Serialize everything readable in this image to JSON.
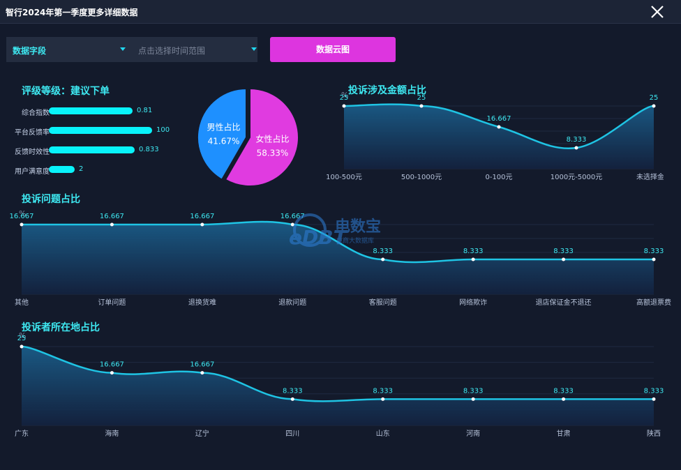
{
  "window": {
    "title": "智行2024年第一季度更多详细数据"
  },
  "filters": {
    "field_select": "数据字段",
    "time_placeholder": "点击选择时间范围",
    "cloud_button": "数据云图"
  },
  "rating": {
    "title": "评级等级：建议下单",
    "items": [
      {
        "label": "综合指数",
        "value": 0.81,
        "display": "0.81",
        "fill": 0.81
      },
      {
        "label": "平台反馈率",
        "value": 100,
        "display": "100",
        "fill": 1.0
      },
      {
        "label": "反馈时效性",
        "value": 0.833,
        "display": "0.833",
        "fill": 0.833
      },
      {
        "label": "用户满意度",
        "value": 2,
        "display": "2",
        "fill": 0.25
      }
    ],
    "bar_color": "#08f3fb"
  },
  "watermark": {
    "name": "电数宝",
    "sub": "电商大数据库",
    "logo": "eDBT"
  },
  "chart_data": [
    {
      "type": "pie",
      "slices": [
        {
          "label": "男性占比",
          "value": 41.67,
          "display": "41.67%",
          "color": "#1e90ff"
        },
        {
          "label": "女性占比",
          "value": 58.33,
          "display": "58.33%",
          "color": "#e03be0"
        }
      ]
    },
    {
      "type": "area",
      "title": "投诉涉及金额占比",
      "yunit": "%",
      "categories": [
        "100-500元",
        "500-1000元",
        "0-100元",
        "1000元-5000元",
        "未选择金额"
      ],
      "values": [
        25,
        25,
        16.667,
        8.333,
        25
      ],
      "labels": [
        "25",
        "25",
        "16.667",
        "8.333",
        "25"
      ],
      "ylim": [
        0,
        25
      ],
      "line_color": "#1fc4e4"
    },
    {
      "type": "area",
      "title": "投诉问题占比",
      "yunit": "%",
      "categories": [
        "其他",
        "订单问题",
        "退换货难",
        "退款问题",
        "客服问题",
        "网络欺诈",
        "退店保证金不退还",
        "高额退票费"
      ],
      "values": [
        16.667,
        16.667,
        16.667,
        16.667,
        8.333,
        8.333,
        8.333,
        8.333
      ],
      "labels": [
        "16.667",
        "16.667",
        "16.667",
        "16.667",
        "8.333",
        "8.333",
        "8.333",
        "8.333"
      ],
      "ylim": [
        0,
        16.667
      ],
      "line_color": "#1fc4e4"
    },
    {
      "type": "area",
      "title": "投诉者所在地占比",
      "yunit": "%",
      "categories": [
        "广东",
        "海南",
        "辽宁",
        "四川",
        "山东",
        "河南",
        "甘肃",
        "陕西"
      ],
      "values": [
        25,
        16.667,
        16.667,
        8.333,
        8.333,
        8.333,
        8.333,
        8.333
      ],
      "labels": [
        "25",
        "16.667",
        "16.667",
        "8.333",
        "8.333",
        "8.333",
        "8.333",
        "8.333"
      ],
      "ylim": [
        0,
        25
      ],
      "line_color": "#1fc4e4"
    }
  ]
}
